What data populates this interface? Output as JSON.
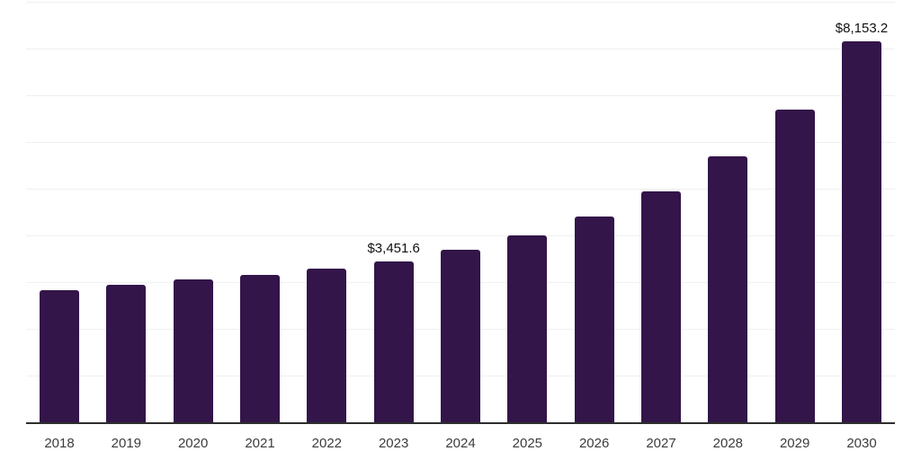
{
  "chart_data": {
    "type": "bar",
    "title": "",
    "xlabel": "",
    "ylabel": "",
    "categories": [
      "2018",
      "2019",
      "2020",
      "2021",
      "2022",
      "2023",
      "2024",
      "2025",
      "2026",
      "2027",
      "2028",
      "2029",
      "2030"
    ],
    "values": [
      2820,
      2950,
      3050,
      3150,
      3280,
      3451.6,
      3690,
      4000,
      4400,
      4950,
      5690,
      6700,
      8153.2
    ],
    "data_labels": {
      "2023": "$3,451.6",
      "2030": "$8,153.2"
    },
    "ylim": [
      0,
      9000
    ],
    "gridline_step": 1000,
    "grid": true,
    "legend": false,
    "bar_color": "#331549",
    "gridline_color": "#f0f0f0",
    "axis_line_color": "#2e2e2e",
    "tick_label_color": "#3c3c3c",
    "data_label_color": "#111111"
  }
}
